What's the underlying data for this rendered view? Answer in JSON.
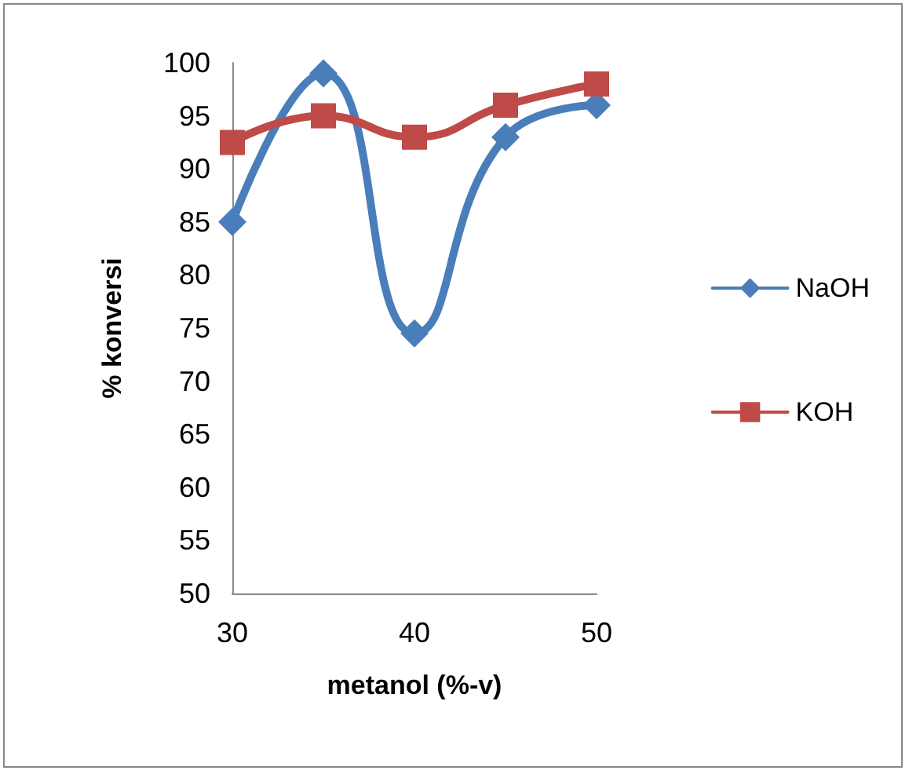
{
  "chart_data": {
    "type": "line",
    "xlabel": "metanol (%-v)",
    "ylabel": "% konversi",
    "x": [
      30,
      35,
      40,
      45,
      50
    ],
    "series": [
      {
        "name": "NaOH",
        "color": "#4a7ebb",
        "marker": "diamond",
        "values": [
          85,
          99,
          74.5,
          93,
          96
        ]
      },
      {
        "name": "KOH",
        "color": "#be4b48",
        "marker": "square",
        "values": [
          92.5,
          95,
          93,
          96,
          98
        ]
      }
    ],
    "xlim": [
      30,
      50
    ],
    "xticks": [
      30,
      40,
      50
    ],
    "ylim": [
      50,
      100
    ],
    "yticks": [
      50,
      55,
      60,
      65,
      70,
      75,
      80,
      85,
      90,
      95,
      100
    ],
    "grid": false,
    "legend": "right",
    "line_style": "solid"
  }
}
